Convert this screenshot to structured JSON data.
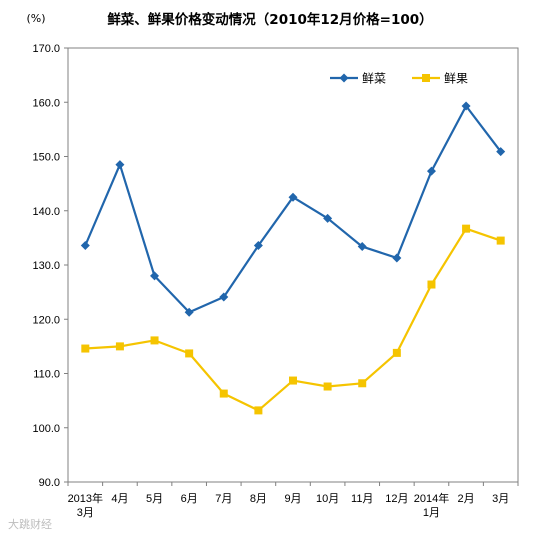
{
  "chart_data": {
    "type": "line",
    "title": "鲜菜、鲜果价格变动情况（2010年12月价格=100）",
    "unit": "(%)",
    "categories": [
      [
        "2013年",
        "3月"
      ],
      [
        "4月"
      ],
      [
        "5月"
      ],
      [
        "6月"
      ],
      [
        "7月"
      ],
      [
        "8月"
      ],
      [
        "9月"
      ],
      [
        "10月"
      ],
      [
        "11月"
      ],
      [
        "12月"
      ],
      [
        "2014年",
        "1月"
      ],
      [
        "2月"
      ],
      [
        "3月"
      ]
    ],
    "ylim": [
      90,
      170
    ],
    "yticks": [
      "90.0",
      "100.0",
      "110.0",
      "120.0",
      "130.0",
      "140.0",
      "150.0",
      "160.0",
      "170.0"
    ],
    "legend_position": "top-right",
    "grid": false,
    "series": [
      {
        "name": "鲜菜",
        "color": "#2166ac",
        "marker": "diamond",
        "values": [
          133.6,
          148.5,
          128.0,
          121.3,
          124.1,
          133.6,
          142.5,
          138.6,
          133.4,
          131.3,
          147.3,
          159.3,
          150.9
        ]
      },
      {
        "name": "鲜果",
        "color": "#f5c400",
        "marker": "square",
        "values": [
          114.6,
          115.0,
          116.1,
          113.7,
          106.3,
          103.2,
          108.7,
          107.6,
          108.2,
          113.8,
          126.4,
          136.7,
          134.5
        ]
      }
    ]
  },
  "watermark": "大跳财经"
}
